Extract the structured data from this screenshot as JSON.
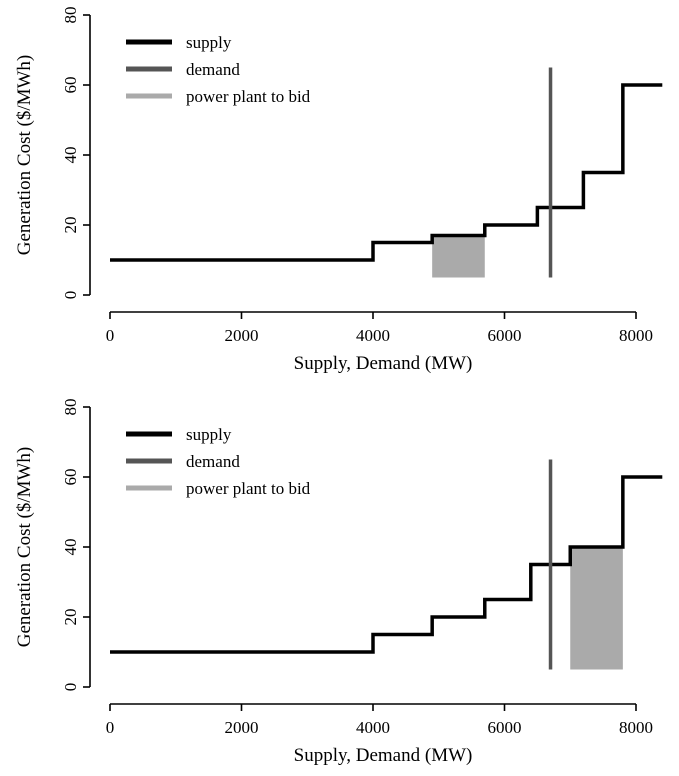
{
  "chart_data": [
    {
      "type": "line",
      "xlabel": "Supply, Demand (MW)",
      "ylabel": "Generation Cost ($/MWh)",
      "xlim": [
        0,
        8400
      ],
      "ylim": [
        0,
        80
      ],
      "xticks": [
        0,
        2000,
        4000,
        6000,
        8000
      ],
      "yticks": [
        0,
        20,
        40,
        60,
        80
      ],
      "grid": false,
      "legend_position": "top-left",
      "legend": [
        {
          "label": "supply",
          "color": "#000000"
        },
        {
          "label": "demand",
          "color": "#555555"
        },
        {
          "label": "power plant to bid",
          "color": "#aaaaaa"
        }
      ],
      "series": [
        {
          "name": "supply",
          "color": "#000000",
          "x": [
            0,
            4000,
            4000,
            4900,
            4900,
            5700,
            5700,
            6500,
            6500,
            7200,
            7200,
            7800,
            7800,
            8400
          ],
          "y": [
            10,
            10,
            15,
            15,
            17,
            17,
            20,
            20,
            25,
            25,
            35,
            35,
            60,
            60
          ]
        },
        {
          "name": "demand",
          "color": "#555555",
          "x": [
            6700,
            6700
          ],
          "y": [
            5,
            65
          ]
        }
      ],
      "highlight": {
        "name": "power plant to bid",
        "color": "#aaaaaa",
        "x": [
          4900,
          5700
        ],
        "y": [
          5,
          17
        ]
      }
    },
    {
      "type": "line",
      "xlabel": "Supply, Demand (MW)",
      "ylabel": "Generation Cost ($/MWh)",
      "xlim": [
        0,
        8400
      ],
      "ylim": [
        0,
        80
      ],
      "xticks": [
        0,
        2000,
        4000,
        6000,
        8000
      ],
      "yticks": [
        0,
        20,
        40,
        60,
        80
      ],
      "grid": false,
      "legend_position": "top-left",
      "legend": [
        {
          "label": "supply",
          "color": "#000000"
        },
        {
          "label": "demand",
          "color": "#555555"
        },
        {
          "label": "power plant to bid",
          "color": "#aaaaaa"
        }
      ],
      "series": [
        {
          "name": "supply",
          "color": "#000000",
          "x": [
            0,
            4000,
            4000,
            4900,
            4900,
            5700,
            5700,
            6400,
            6400,
            7000,
            7000,
            7800,
            7800,
            8400
          ],
          "y": [
            10,
            10,
            15,
            15,
            20,
            20,
            25,
            25,
            35,
            35,
            40,
            40,
            60,
            60
          ]
        },
        {
          "name": "demand",
          "color": "#555555",
          "x": [
            6700,
            6700
          ],
          "y": [
            5,
            65
          ]
        }
      ],
      "highlight": {
        "name": "power plant to bid",
        "color": "#aaaaaa",
        "x": [
          7000,
          7800
        ],
        "y": [
          5,
          40
        ]
      }
    }
  ]
}
